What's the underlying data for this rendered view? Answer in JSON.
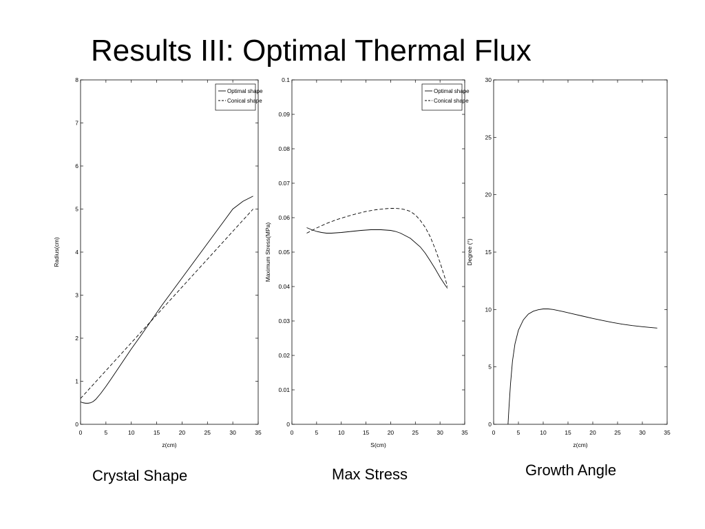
{
  "slide": {
    "title": "Results III: Optimal Thermal Flux",
    "captions": [
      "Crystal Shape",
      "Max Stress",
      "Growth Angle"
    ]
  },
  "chart_data": [
    {
      "type": "line",
      "title": "",
      "xlabel": "z(cm)",
      "ylabel": "Radius(cm)",
      "xlim": [
        0,
        35
      ],
      "ylim": [
        0,
        8
      ],
      "xticks": [
        0,
        5,
        10,
        15,
        20,
        25,
        30,
        35
      ],
      "yticks": [
        0,
        1,
        2,
        3,
        4,
        5,
        6,
        7,
        8
      ],
      "xtick_labels": [
        "0",
        "5",
        "10",
        "15",
        "20",
        "25",
        "30",
        "35"
      ],
      "ytick_labels": [
        "0",
        "1",
        "2",
        "3",
        "4",
        "5",
        "6",
        "7",
        "8"
      ],
      "grid": false,
      "legend_position": "top-right",
      "series": [
        {
          "name": "Optimal shape",
          "style": "solid",
          "x": [
            0,
            0.5,
            1,
            1.5,
            2,
            2.5,
            3,
            4,
            5,
            6,
            8,
            10,
            12,
            14,
            16,
            18,
            20,
            22,
            24,
            26,
            28,
            30,
            32,
            34
          ],
          "y": [
            0.52,
            0.5,
            0.49,
            0.49,
            0.5,
            0.53,
            0.58,
            0.72,
            0.88,
            1.05,
            1.4,
            1.75,
            2.08,
            2.42,
            2.76,
            3.08,
            3.4,
            3.72,
            4.04,
            4.36,
            4.68,
            5.0,
            5.18,
            5.3
          ]
        },
        {
          "name": "Conical shape",
          "style": "dashed",
          "x": [
            0,
            34
          ],
          "y": [
            0.6,
            5.0
          ]
        }
      ]
    },
    {
      "type": "line",
      "title": "",
      "xlabel": "S(cm)",
      "ylabel": "Maximum Stress(MPa)",
      "xlim": [
        0,
        35
      ],
      "ylim": [
        0,
        0.1
      ],
      "xticks": [
        0,
        5,
        10,
        15,
        20,
        25,
        30,
        35
      ],
      "yticks": [
        0,
        0.01,
        0.02,
        0.03,
        0.04,
        0.05,
        0.06,
        0.07,
        0.08,
        0.09,
        0.1
      ],
      "xtick_labels": [
        "0",
        "5",
        "10",
        "15",
        "20",
        "25",
        "30",
        "35"
      ],
      "ytick_labels": [
        "0",
        "0.01",
        "0.02",
        "0.03",
        "0.04",
        "0.05",
        "0.06",
        "0.07",
        "0.08",
        "0.09",
        "0.1"
      ],
      "grid": false,
      "legend_position": "top-right",
      "series": [
        {
          "name": "Optimal shape",
          "style": "solid",
          "x": [
            3,
            4,
            5,
            6,
            7,
            8,
            10,
            12,
            14,
            16,
            18,
            20,
            21,
            22,
            24,
            26,
            27,
            28,
            29,
            30,
            31,
            31.5
          ],
          "y": [
            0.0571,
            0.0565,
            0.056,
            0.0557,
            0.0555,
            0.0555,
            0.0557,
            0.056,
            0.0563,
            0.0565,
            0.0565,
            0.0563,
            0.056,
            0.0555,
            0.054,
            0.0515,
            0.0497,
            0.0475,
            0.0452,
            0.0427,
            0.0405,
            0.0395
          ]
        },
        {
          "name": "Conical shape",
          "style": "dashed",
          "x": [
            3,
            5,
            7,
            9,
            11,
            13,
            15,
            17,
            19,
            20,
            21,
            22,
            23,
            24,
            25,
            26,
            27,
            28,
            29,
            30,
            31,
            31.5
          ],
          "y": [
            0.0555,
            0.057,
            0.0583,
            0.0594,
            0.0603,
            0.0611,
            0.0618,
            0.0623,
            0.0626,
            0.0627,
            0.0627,
            0.0626,
            0.0623,
            0.0618,
            0.0608,
            0.0592,
            0.0572,
            0.0545,
            0.051,
            0.047,
            0.0425,
            0.04
          ]
        }
      ]
    },
    {
      "type": "line",
      "title": "",
      "xlabel": "z(cm)",
      "ylabel": "Degree (°)",
      "xlim": [
        0,
        35
      ],
      "ylim": [
        0,
        30
      ],
      "xticks": [
        0,
        5,
        10,
        15,
        20,
        25,
        30,
        35
      ],
      "yticks": [
        0,
        5,
        10,
        15,
        20,
        25,
        30
      ],
      "xtick_labels": [
        "0",
        "5",
        "10",
        "15",
        "20",
        "25",
        "30",
        "35"
      ],
      "ytick_labels": [
        "0",
        "5",
        "10",
        "15",
        "20",
        "25",
        "30"
      ],
      "grid": false,
      "series": [
        {
          "style": "solid",
          "x": [
            2.9,
            3.1,
            3.4,
            3.8,
            4.3,
            5,
            6,
            7,
            8,
            9,
            10,
            11,
            12,
            14,
            16,
            18,
            20,
            22,
            24,
            26,
            28,
            30,
            32,
            33
          ],
          "y": [
            0,
            1.5,
            3.5,
            5.5,
            7.0,
            8.2,
            9.1,
            9.6,
            9.85,
            9.98,
            10.05,
            10.05,
            10.0,
            9.82,
            9.62,
            9.42,
            9.22,
            9.04,
            8.87,
            8.72,
            8.6,
            8.5,
            8.42,
            8.38
          ]
        }
      ]
    }
  ]
}
